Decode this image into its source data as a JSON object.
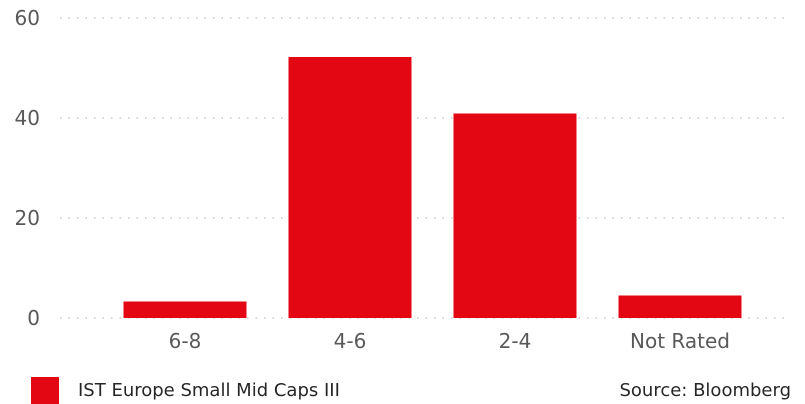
{
  "chart_data": {
    "type": "bar",
    "categories": [
      "6-8",
      "4-6",
      "2-4",
      "Not Rated"
    ],
    "series": [
      {
        "name": "IST Europe Small Mid Caps III",
        "values": [
          3.3,
          52.2,
          40.9,
          4.5
        ],
        "color": "#e30613"
      }
    ],
    "ylim": [
      0,
      60
    ],
    "yticks": [
      0,
      20,
      40,
      60
    ],
    "grid": true,
    "legend_position": "bottom-left",
    "source": "Source: Bloomberg"
  }
}
